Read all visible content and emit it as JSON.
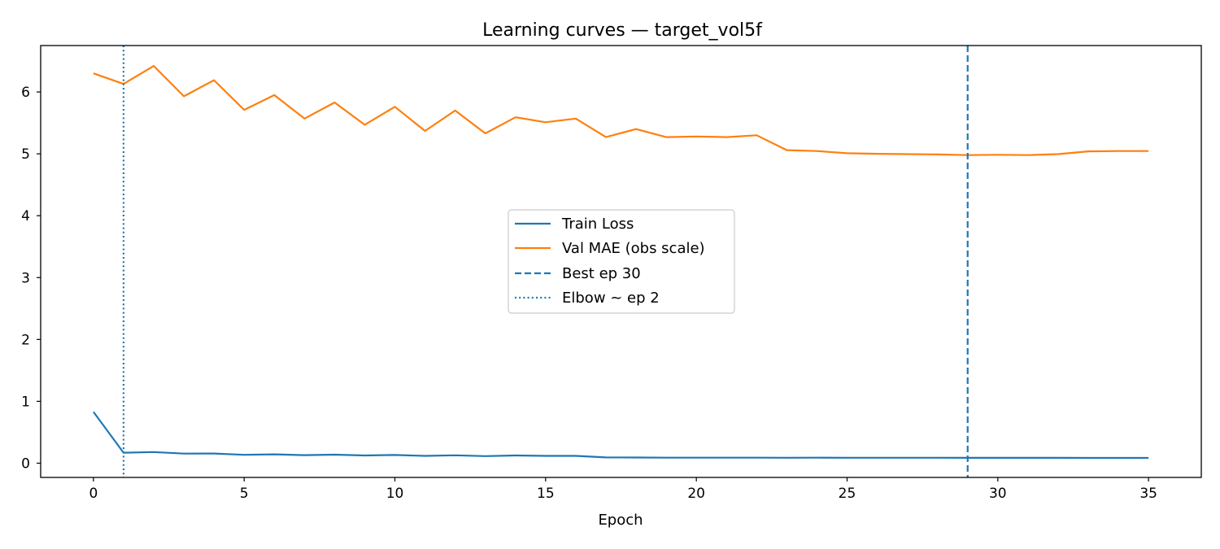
{
  "chart_data": {
    "type": "line",
    "title": "Learning curves — target_vol5f",
    "xlabel": "Epoch",
    "ylabel": "",
    "xlim": [
      -1.75,
      36.75
    ],
    "ylim": [
      -0.23,
      6.75
    ],
    "xticks": [
      0,
      5,
      10,
      15,
      20,
      25,
      30,
      35
    ],
    "yticks": [
      0,
      1,
      2,
      3,
      4,
      5,
      6
    ],
    "grid": false,
    "legend_position": "center",
    "x": [
      0,
      1,
      2,
      3,
      4,
      5,
      6,
      7,
      8,
      9,
      10,
      11,
      12,
      13,
      14,
      15,
      16,
      17,
      18,
      19,
      20,
      21,
      22,
      23,
      24,
      25,
      26,
      27,
      28,
      29,
      30,
      31,
      32,
      33,
      34,
      35
    ],
    "series": [
      {
        "name": "Train Loss",
        "color": "#1f77b4",
        "style": "solid",
        "values": [
          0.83,
          0.17,
          0.18,
          0.155,
          0.157,
          0.136,
          0.143,
          0.13,
          0.138,
          0.125,
          0.133,
          0.118,
          0.128,
          0.115,
          0.125,
          0.118,
          0.119,
          0.093,
          0.092,
          0.09,
          0.09,
          0.09,
          0.09,
          0.088,
          0.09,
          0.088,
          0.088,
          0.088,
          0.088,
          0.087,
          0.087,
          0.087,
          0.087,
          0.086,
          0.086,
          0.086
        ]
      },
      {
        "name": "Val MAE (obs scale)",
        "color": "#ff7f0e",
        "style": "solid",
        "values": [
          6.3,
          6.13,
          6.42,
          5.93,
          6.19,
          5.71,
          5.95,
          5.57,
          5.83,
          5.47,
          5.76,
          5.37,
          5.7,
          5.33,
          5.59,
          5.51,
          5.57,
          5.27,
          5.4,
          5.27,
          5.28,
          5.27,
          5.3,
          5.06,
          5.045,
          5.01,
          5.0,
          4.995,
          4.99,
          4.98,
          4.985,
          4.98,
          4.995,
          5.04,
          5.045,
          5.045
        ]
      }
    ],
    "vlines": [
      {
        "name": "Best ep 30",
        "x": 29,
        "color": "#1f77b4",
        "style": "dashed"
      },
      {
        "name": "Elbow ~ ep 2",
        "x": 1,
        "color": "#1f77b4",
        "style": "dotted"
      }
    ],
    "legend": [
      "Train Loss",
      "Val MAE (obs scale)",
      "Best ep 30",
      "Elbow ~ ep 2"
    ]
  }
}
